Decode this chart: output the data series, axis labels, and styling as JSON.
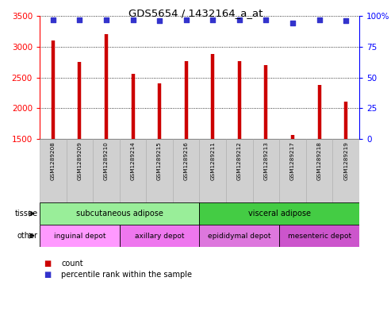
{
  "title": "GDS5654 / 1432164_a_at",
  "samples": [
    "GSM1289208",
    "GSM1289209",
    "GSM1289210",
    "GSM1289214",
    "GSM1289215",
    "GSM1289216",
    "GSM1289211",
    "GSM1289212",
    "GSM1289213",
    "GSM1289217",
    "GSM1289218",
    "GSM1289219"
  ],
  "counts": [
    3100,
    2750,
    3200,
    2560,
    2400,
    2770,
    2880,
    2760,
    2700,
    1560,
    2380,
    2110
  ],
  "percentiles": [
    97,
    97,
    97,
    97,
    96,
    97,
    97,
    97,
    97,
    94,
    97,
    96
  ],
  "ymin": 1500,
  "ymax": 3500,
  "yticks": [
    1500,
    2000,
    2500,
    3000,
    3500
  ],
  "y2min": 0,
  "y2max": 100,
  "y2ticks": [
    0,
    25,
    50,
    75,
    100
  ],
  "bar_color": "#cc0000",
  "dot_color": "#3333cc",
  "tissue_groups": [
    {
      "label": "subcutaneous adipose",
      "start": 0,
      "end": 6,
      "color": "#99ee99"
    },
    {
      "label": "visceral adipose",
      "start": 6,
      "end": 12,
      "color": "#44cc44"
    }
  ],
  "other_groups": [
    {
      "label": "inguinal depot",
      "start": 0,
      "end": 3,
      "color": "#ff99ff"
    },
    {
      "label": "axillary depot",
      "start": 3,
      "end": 6,
      "color": "#ee77ee"
    },
    {
      "label": "epididymal depot",
      "start": 6,
      "end": 9,
      "color": "#dd77dd"
    },
    {
      "label": "mesenteric depot",
      "start": 9,
      "end": 12,
      "color": "#cc55cc"
    }
  ],
  "legend_count_color": "#cc0000",
  "legend_dot_color": "#3333cc"
}
